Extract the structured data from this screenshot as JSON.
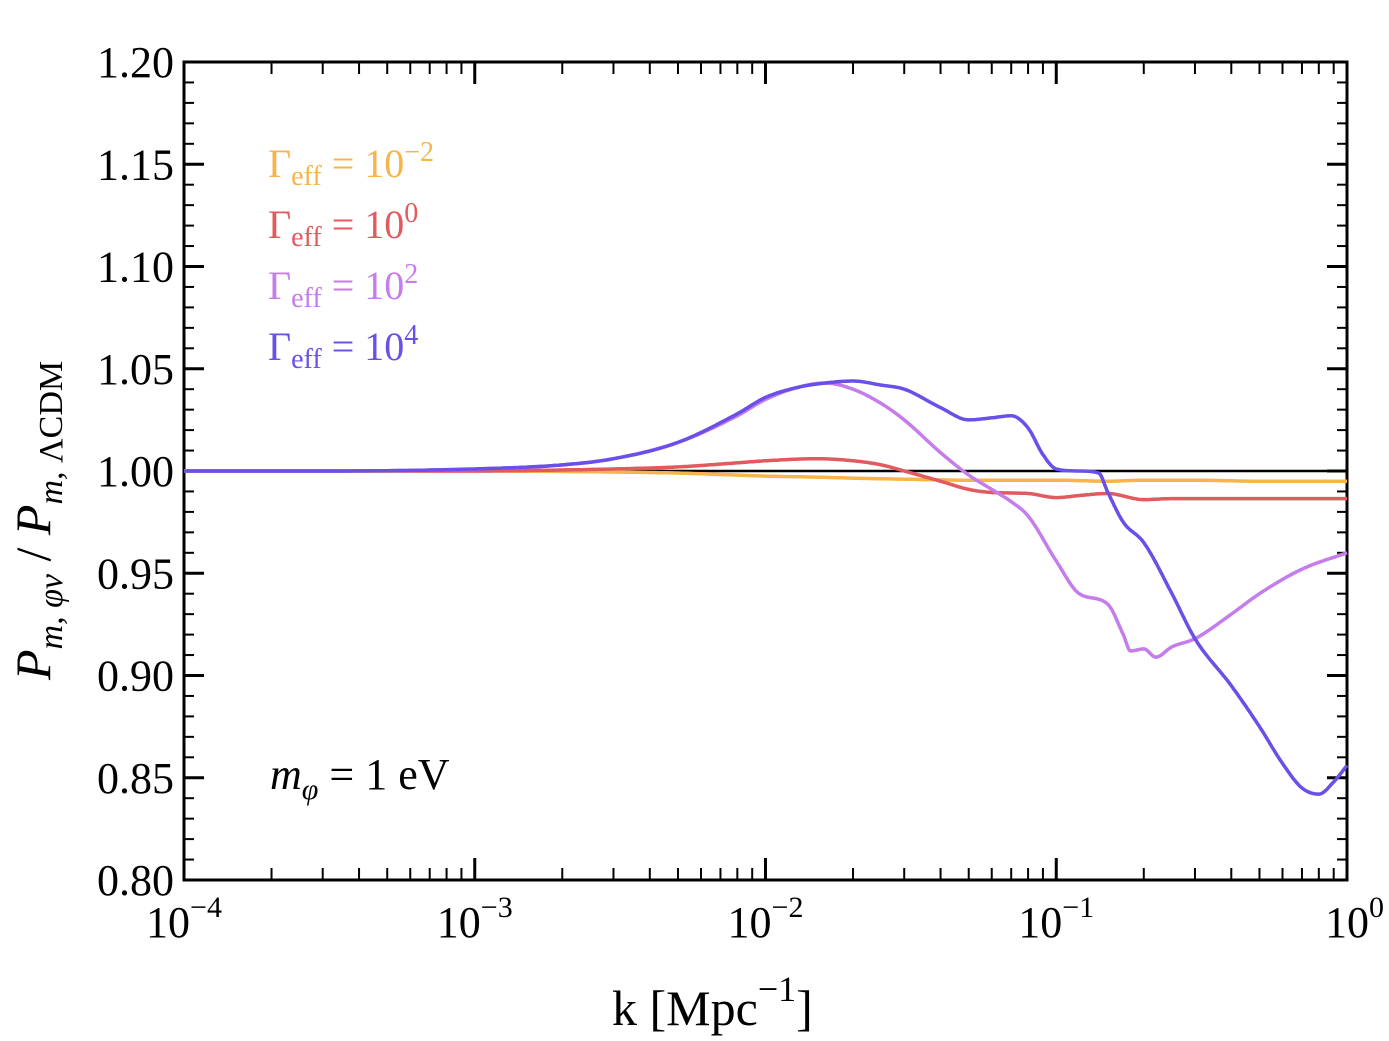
{
  "chart_data": {
    "type": "line",
    "x_scale": "log",
    "xlim": [
      0.0001,
      1
    ],
    "ylim": [
      0.8,
      1.2
    ],
    "grid": false,
    "legend_position": "top-left",
    "xlabel": {
      "main": "k   [Mpc",
      "sup": "−1",
      "close": "]"
    },
    "ylabel": {
      "p1": "P",
      "sub1": "m, φν",
      "slash": " / ",
      "p2": "P",
      "sub2_italic": "m,",
      "sub2_roman": " ΛCDM"
    },
    "x_ticks": [
      {
        "value": 0.0001,
        "base": "10",
        "exp": "−4"
      },
      {
        "value": 0.001,
        "base": "10",
        "exp": "−3"
      },
      {
        "value": 0.01,
        "base": "10",
        "exp": "−2"
      },
      {
        "value": 0.1,
        "base": "10",
        "exp": "−1"
      },
      {
        "value": 1,
        "base": "10",
        "exp": "0"
      }
    ],
    "y_ticks": [
      {
        "value": 0.8,
        "label": "0.80"
      },
      {
        "value": 0.85,
        "label": "0.85"
      },
      {
        "value": 0.9,
        "label": "0.90"
      },
      {
        "value": 0.95,
        "label": "0.95"
      },
      {
        "value": 1.0,
        "label": "1.00"
      },
      {
        "value": 1.05,
        "label": "1.05"
      },
      {
        "value": 1.1,
        "label": "1.10"
      },
      {
        "value": 1.15,
        "label": "1.15"
      },
      {
        "value": 1.2,
        "label": "1.20"
      }
    ],
    "reference_line": {
      "y": 1.0,
      "color": "#000000"
    },
    "annotation": {
      "symbol": "m",
      "sub": "φ",
      "text": " = 1 eV"
    },
    "series": [
      {
        "name": "Γeff = 10^-2",
        "legend": {
          "gamma": "Γ",
          "sub": "eff",
          "eq": " = 10",
          "exp": "−2"
        },
        "color": "#F6B44B",
        "x": [
          0.0001,
          0.0003,
          0.001,
          0.003,
          0.005,
          0.008,
          0.01,
          0.015,
          0.02,
          0.03,
          0.05,
          0.08,
          0.1,
          0.15,
          0.2,
          0.3,
          0.5,
          0.7,
          1.0
        ],
        "y": [
          1.0,
          1.0,
          1.0,
          0.9995,
          0.999,
          0.998,
          0.9975,
          0.997,
          0.9965,
          0.996,
          0.9955,
          0.9955,
          0.9955,
          0.995,
          0.9955,
          0.9955,
          0.995,
          0.995,
          0.995
        ]
      },
      {
        "name": "Γeff = 10^0",
        "legend": {
          "gamma": "Γ",
          "sub": "eff",
          "eq": " = 10",
          "exp": "0"
        },
        "color": "#E05A5E",
        "x": [
          0.0001,
          0.0003,
          0.001,
          0.002,
          0.003,
          0.005,
          0.008,
          0.01,
          0.015,
          0.02,
          0.025,
          0.03,
          0.04,
          0.05,
          0.06,
          0.08,
          0.1,
          0.12,
          0.15,
          0.2,
          0.25,
          0.3,
          0.5,
          0.7,
          1.0
        ],
        "y": [
          1.0,
          1.0,
          1.0,
          1.0005,
          1.001,
          1.002,
          1.004,
          1.005,
          1.006,
          1.005,
          1.003,
          1.0,
          0.995,
          0.991,
          0.9895,
          0.989,
          0.987,
          0.988,
          0.989,
          0.986,
          0.9865,
          0.9865,
          0.9865,
          0.9865,
          0.9865
        ]
      },
      {
        "name": "Γeff = 10^2",
        "legend": {
          "gamma": "Γ",
          "sub": "eff",
          "eq": " = 10",
          "exp": "2"
        },
        "color": "#C47DEB",
        "x": [
          0.0001,
          0.0003,
          0.001,
          0.002,
          0.003,
          0.005,
          0.008,
          0.01,
          0.013,
          0.016,
          0.02,
          0.025,
          0.03,
          0.04,
          0.05,
          0.06,
          0.07,
          0.08,
          0.1,
          0.12,
          0.15,
          0.17,
          0.18,
          0.2,
          0.22,
          0.25,
          0.3,
          0.4,
          0.5,
          0.7,
          1.0
        ],
        "y": [
          1.0,
          1.0,
          1.001,
          1.003,
          1.006,
          1.014,
          1.027,
          1.035,
          1.041,
          1.043,
          1.04,
          1.033,
          1.025,
          1.009,
          0.998,
          0.991,
          0.985,
          0.978,
          0.956,
          0.94,
          0.935,
          0.92,
          0.912,
          0.913,
          0.909,
          0.914,
          0.918,
          0.93,
          0.94,
          0.952,
          0.96
        ]
      },
      {
        "name": "Γeff = 10^4",
        "legend": {
          "gamma": "Γ",
          "sub": "eff",
          "eq": " = 10",
          "exp": "4"
        },
        "color": "#6A4FE8",
        "x": [
          0.0001,
          0.0003,
          0.001,
          0.002,
          0.003,
          0.005,
          0.008,
          0.01,
          0.013,
          0.016,
          0.02,
          0.025,
          0.03,
          0.04,
          0.05,
          0.06,
          0.07,
          0.08,
          0.09,
          0.1,
          0.12,
          0.14,
          0.15,
          0.17,
          0.2,
          0.25,
          0.3,
          0.4,
          0.5,
          0.6,
          0.7,
          0.8,
          0.9,
          1.0
        ],
        "y": [
          1.0,
          1.0,
          1.001,
          1.003,
          1.006,
          1.014,
          1.028,
          1.036,
          1.041,
          1.043,
          1.044,
          1.042,
          1.04,
          1.031,
          1.025,
          1.026,
          1.027,
          1.021,
          1.008,
          1.001,
          1.0,
          0.999,
          0.99,
          0.975,
          0.965,
          0.94,
          0.918,
          0.895,
          0.875,
          0.857,
          0.845,
          0.842,
          0.848,
          0.856
        ]
      }
    ]
  }
}
